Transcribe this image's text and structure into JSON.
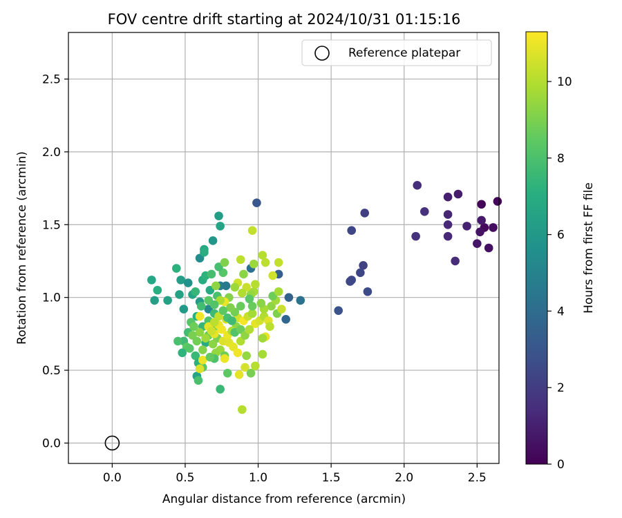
{
  "chart_data": {
    "type": "scatter",
    "title": "FOV centre drift starting at 2024/10/31 01:15:16",
    "xlabel": "Angular distance from reference (arcmin)",
    "ylabel": "Rotation from reference (arcmin)",
    "xlim": [
      -0.3,
      2.65
    ],
    "ylim": [
      -0.14,
      2.82
    ],
    "xticks": [
      0.0,
      0.5,
      1.0,
      1.5,
      2.0,
      2.5
    ],
    "xtick_labels": [
      "0.0",
      "0.5",
      "1.0",
      "1.5",
      "2.0",
      "2.5"
    ],
    "yticks": [
      0.0,
      0.5,
      1.0,
      1.5,
      2.0,
      2.5
    ],
    "ytick_labels": [
      "0.0",
      "0.5",
      "1.0",
      "1.5",
      "2.0",
      "2.5"
    ],
    "grid": true,
    "legend": {
      "position": "top-right",
      "entries": [
        "Reference platepar"
      ]
    },
    "reference_point": {
      "x": 0.0,
      "y": 0.0,
      "marker": "open-circle",
      "color": "#000000"
    },
    "colorbar": {
      "label": "Hours from first FF file",
      "colormap": "viridis",
      "range": [
        0,
        11.3
      ],
      "ticks": [
        0,
        2,
        4,
        6,
        8,
        10
      ],
      "tick_labels": [
        "0",
        "2",
        "4",
        "6",
        "8",
        "10"
      ]
    },
    "series": [
      {
        "marker": "filled-circle",
        "points": [
          [
            2.53,
            1.64,
            0.1
          ],
          [
            2.64,
            1.66,
            0.2
          ],
          [
            2.55,
            1.48,
            0.3
          ],
          [
            2.61,
            1.48,
            0.4
          ],
          [
            2.58,
            1.34,
            0.5
          ],
          [
            2.52,
            1.45,
            0.6
          ],
          [
            2.5,
            1.37,
            0.7
          ],
          [
            2.53,
            1.53,
            0.8
          ],
          [
            2.37,
            1.71,
            0.9
          ],
          [
            2.3,
            1.69,
            1.0
          ],
          [
            2.43,
            1.49,
            1.1
          ],
          [
            2.3,
            1.57,
            1.2
          ],
          [
            2.3,
            1.5,
            1.3
          ],
          [
            2.3,
            1.42,
            1.3
          ],
          [
            2.35,
            1.25,
            1.4
          ],
          [
            2.09,
            1.77,
            1.5
          ],
          [
            2.14,
            1.59,
            1.6
          ],
          [
            2.08,
            1.42,
            1.7
          ],
          [
            1.73,
            1.58,
            2.1
          ],
          [
            1.64,
            1.46,
            2.4
          ],
          [
            1.72,
            1.22,
            2.2
          ],
          [
            1.7,
            1.17,
            2.4
          ],
          [
            1.64,
            1.12,
            2.5
          ],
          [
            1.63,
            1.11,
            2.5
          ],
          [
            1.75,
            1.04,
            2.6
          ],
          [
            1.55,
            0.91,
            2.9
          ],
          [
            0.99,
            1.65,
            3.1
          ],
          [
            1.21,
            1.0,
            3.6
          ],
          [
            1.29,
            0.98,
            4.3
          ],
          [
            1.19,
            0.85,
            3.8
          ],
          [
            1.14,
            1.16,
            3.5
          ],
          [
            0.95,
            1.2,
            4.2
          ],
          [
            0.74,
            1.08,
            4.8
          ],
          [
            0.78,
            1.08,
            4.6
          ],
          [
            0.66,
            0.92,
            5.3
          ],
          [
            0.6,
            1.27,
            5.5
          ],
          [
            0.73,
            1.56,
            6.3
          ],
          [
            0.74,
            1.49,
            6.6
          ],
          [
            0.69,
            1.39,
            6.0
          ],
          [
            0.63,
            1.33,
            6.8
          ],
          [
            0.63,
            1.31,
            7.1
          ],
          [
            0.44,
            1.2,
            7.2
          ],
          [
            0.27,
            1.12,
            6.7
          ],
          [
            0.31,
            1.05,
            7.1
          ],
          [
            0.29,
            0.98,
            6.4
          ],
          [
            0.38,
            0.98,
            6.5
          ],
          [
            0.47,
            1.12,
            6.3
          ],
          [
            0.52,
            1.1,
            5.7
          ],
          [
            0.46,
            1.02,
            6.5
          ],
          [
            0.49,
            0.92,
            6.1
          ],
          [
            0.55,
            1.02,
            6.6
          ],
          [
            0.57,
            1.04,
            7.5
          ],
          [
            0.6,
            0.97,
            6.2
          ],
          [
            0.62,
            1.12,
            7.0
          ],
          [
            0.64,
            1.15,
            7.3
          ],
          [
            0.67,
            1.05,
            6.9
          ],
          [
            0.68,
            1.16,
            7.9
          ],
          [
            0.72,
            1.01,
            8.0
          ],
          [
            0.7,
            0.89,
            7.7
          ],
          [
            0.66,
            0.84,
            8.1
          ],
          [
            0.62,
            0.8,
            7.5
          ],
          [
            0.58,
            0.87,
            7.1
          ],
          [
            0.54,
            0.83,
            8.3
          ],
          [
            0.52,
            0.76,
            7.8
          ],
          [
            0.49,
            0.7,
            7.7
          ],
          [
            0.51,
            0.66,
            8.5
          ],
          [
            0.48,
            0.62,
            7.3
          ],
          [
            0.45,
            0.7,
            8.0
          ],
          [
            0.53,
            0.65,
            8.3
          ],
          [
            0.57,
            0.6,
            7.6
          ],
          [
            0.59,
            0.55,
            7.2
          ],
          [
            0.62,
            0.52,
            8.4
          ],
          [
            0.58,
            0.46,
            6.6
          ],
          [
            0.59,
            0.43,
            8.0
          ],
          [
            0.64,
            0.69,
            7.0
          ],
          [
            0.66,
            0.74,
            8.6
          ],
          [
            0.69,
            0.78,
            8.8
          ],
          [
            0.72,
            0.72,
            9.0
          ],
          [
            0.69,
            0.68,
            9.3
          ],
          [
            0.74,
            0.64,
            9.6
          ],
          [
            0.77,
            0.6,
            8.8
          ],
          [
            0.74,
            0.37,
            7.6
          ],
          [
            0.79,
            0.48,
            8.5
          ],
          [
            0.89,
            0.23,
            10.1
          ],
          [
            0.6,
            0.87,
            11.1
          ],
          [
            0.62,
            0.57,
            11.0
          ],
          [
            0.6,
            0.51,
            10.7
          ],
          [
            0.66,
            0.8,
            10.9
          ],
          [
            0.7,
            0.75,
            10.9
          ],
          [
            0.73,
            0.81,
            11.0
          ],
          [
            0.75,
            0.78,
            11.1
          ],
          [
            0.76,
            0.7,
            10.7
          ],
          [
            0.79,
            0.74,
            11.0
          ],
          [
            0.8,
            0.69,
            10.8
          ],
          [
            0.77,
            0.58,
            11.0
          ],
          [
            0.83,
            0.66,
            10.9
          ],
          [
            0.86,
            0.62,
            11.1
          ],
          [
            0.87,
            0.47,
            10.9
          ],
          [
            0.91,
            0.52,
            10.6
          ],
          [
            0.95,
            0.48,
            9.0
          ],
          [
            0.98,
            0.53,
            10.1
          ],
          [
            0.92,
            0.6,
            9.5
          ],
          [
            0.88,
            0.7,
            10.0
          ],
          [
            0.86,
            0.86,
            10.5
          ],
          [
            0.9,
            0.84,
            11.2
          ],
          [
            0.93,
            0.87,
            10.4
          ],
          [
            0.96,
            0.89,
            9.8
          ],
          [
            0.98,
            0.82,
            10.9
          ],
          [
            1.01,
            0.84,
            10.6
          ],
          [
            1.04,
            0.87,
            10.0
          ],
          [
            1.07,
            0.84,
            10.8
          ],
          [
            1.08,
            0.8,
            10.2
          ],
          [
            1.05,
            0.73,
            10.9
          ],
          [
            1.03,
            0.72,
            9.7
          ],
          [
            1.03,
            0.61,
            9.8
          ],
          [
            1.09,
            0.94,
            9.4
          ],
          [
            1.13,
            0.89,
            9.1
          ],
          [
            1.12,
            0.98,
            9.7
          ],
          [
            1.1,
            1.01,
            8.8
          ],
          [
            1.14,
            1.04,
            9.8
          ],
          [
            1.16,
            0.92,
            10.4
          ],
          [
            1.04,
            0.92,
            9.8
          ],
          [
            1.02,
            0.96,
            9.3
          ],
          [
            0.97,
            1.04,
            9.8
          ],
          [
            0.98,
            1.09,
            10.1
          ],
          [
            0.95,
            1.02,
            9.5
          ],
          [
            0.92,
            1.07,
            10.4
          ],
          [
            0.89,
            1.03,
            10.0
          ],
          [
            0.86,
            1.1,
            10.5
          ],
          [
            0.84,
            1.07,
            9.6
          ],
          [
            0.8,
            1.0,
            9.2
          ],
          [
            0.77,
            0.97,
            11.0
          ],
          [
            0.74,
            0.98,
            9.9
          ],
          [
            0.71,
            1.08,
            9.4
          ],
          [
            0.76,
            1.17,
            8.3
          ],
          [
            0.73,
            1.21,
            7.9
          ],
          [
            0.77,
            1.24,
            9.1
          ],
          [
            0.88,
            1.26,
            10.2
          ],
          [
            0.97,
            1.23,
            9.6
          ],
          [
            0.96,
            1.46,
            10.3
          ],
          [
            1.03,
            1.29,
            10.1
          ],
          [
            1.05,
            1.24,
            10.2
          ],
          [
            1.1,
            1.15,
            10.5
          ],
          [
            1.14,
            1.24,
            10.3
          ],
          [
            0.9,
            1.16,
            9.3
          ],
          [
            0.88,
            0.94,
            8.7
          ],
          [
            0.84,
            0.9,
            8.9
          ],
          [
            0.81,
            0.93,
            9.1
          ],
          [
            0.85,
            0.8,
            9.4
          ],
          [
            0.82,
            0.77,
            9.9
          ],
          [
            0.78,
            0.85,
            10.6
          ],
          [
            0.73,
            0.87,
            10.3
          ],
          [
            0.7,
            0.83,
            10.2
          ],
          [
            0.68,
            0.77,
            10.5
          ],
          [
            0.71,
            0.62,
            9.5
          ],
          [
            0.7,
            0.58,
            8.1
          ],
          [
            0.67,
            0.59,
            8.6
          ],
          [
            0.62,
            0.64,
            9.2
          ],
          [
            0.64,
            0.72,
            9.7
          ],
          [
            0.6,
            0.76,
            9.4
          ],
          [
            0.56,
            0.8,
            8.8
          ],
          [
            0.55,
            0.74,
            9.0
          ],
          [
            0.58,
            0.7,
            8.9
          ],
          [
            0.61,
            0.94,
            7.8
          ],
          [
            0.66,
            0.98,
            8.4
          ],
          [
            0.7,
            0.95,
            8.2
          ],
          [
            0.76,
            0.91,
            8.5
          ],
          [
            0.79,
            0.86,
            8.0
          ],
          [
            0.82,
            0.84,
            7.7
          ],
          [
            0.84,
            0.76,
            8.2
          ],
          [
            0.88,
            0.78,
            8.8
          ],
          [
            0.91,
            0.74,
            9.4
          ],
          [
            0.94,
            0.78,
            10.0
          ],
          [
            0.96,
            0.94,
            8.7
          ],
          [
            0.94,
            0.99,
            8.4
          ]
        ]
      }
    ]
  }
}
